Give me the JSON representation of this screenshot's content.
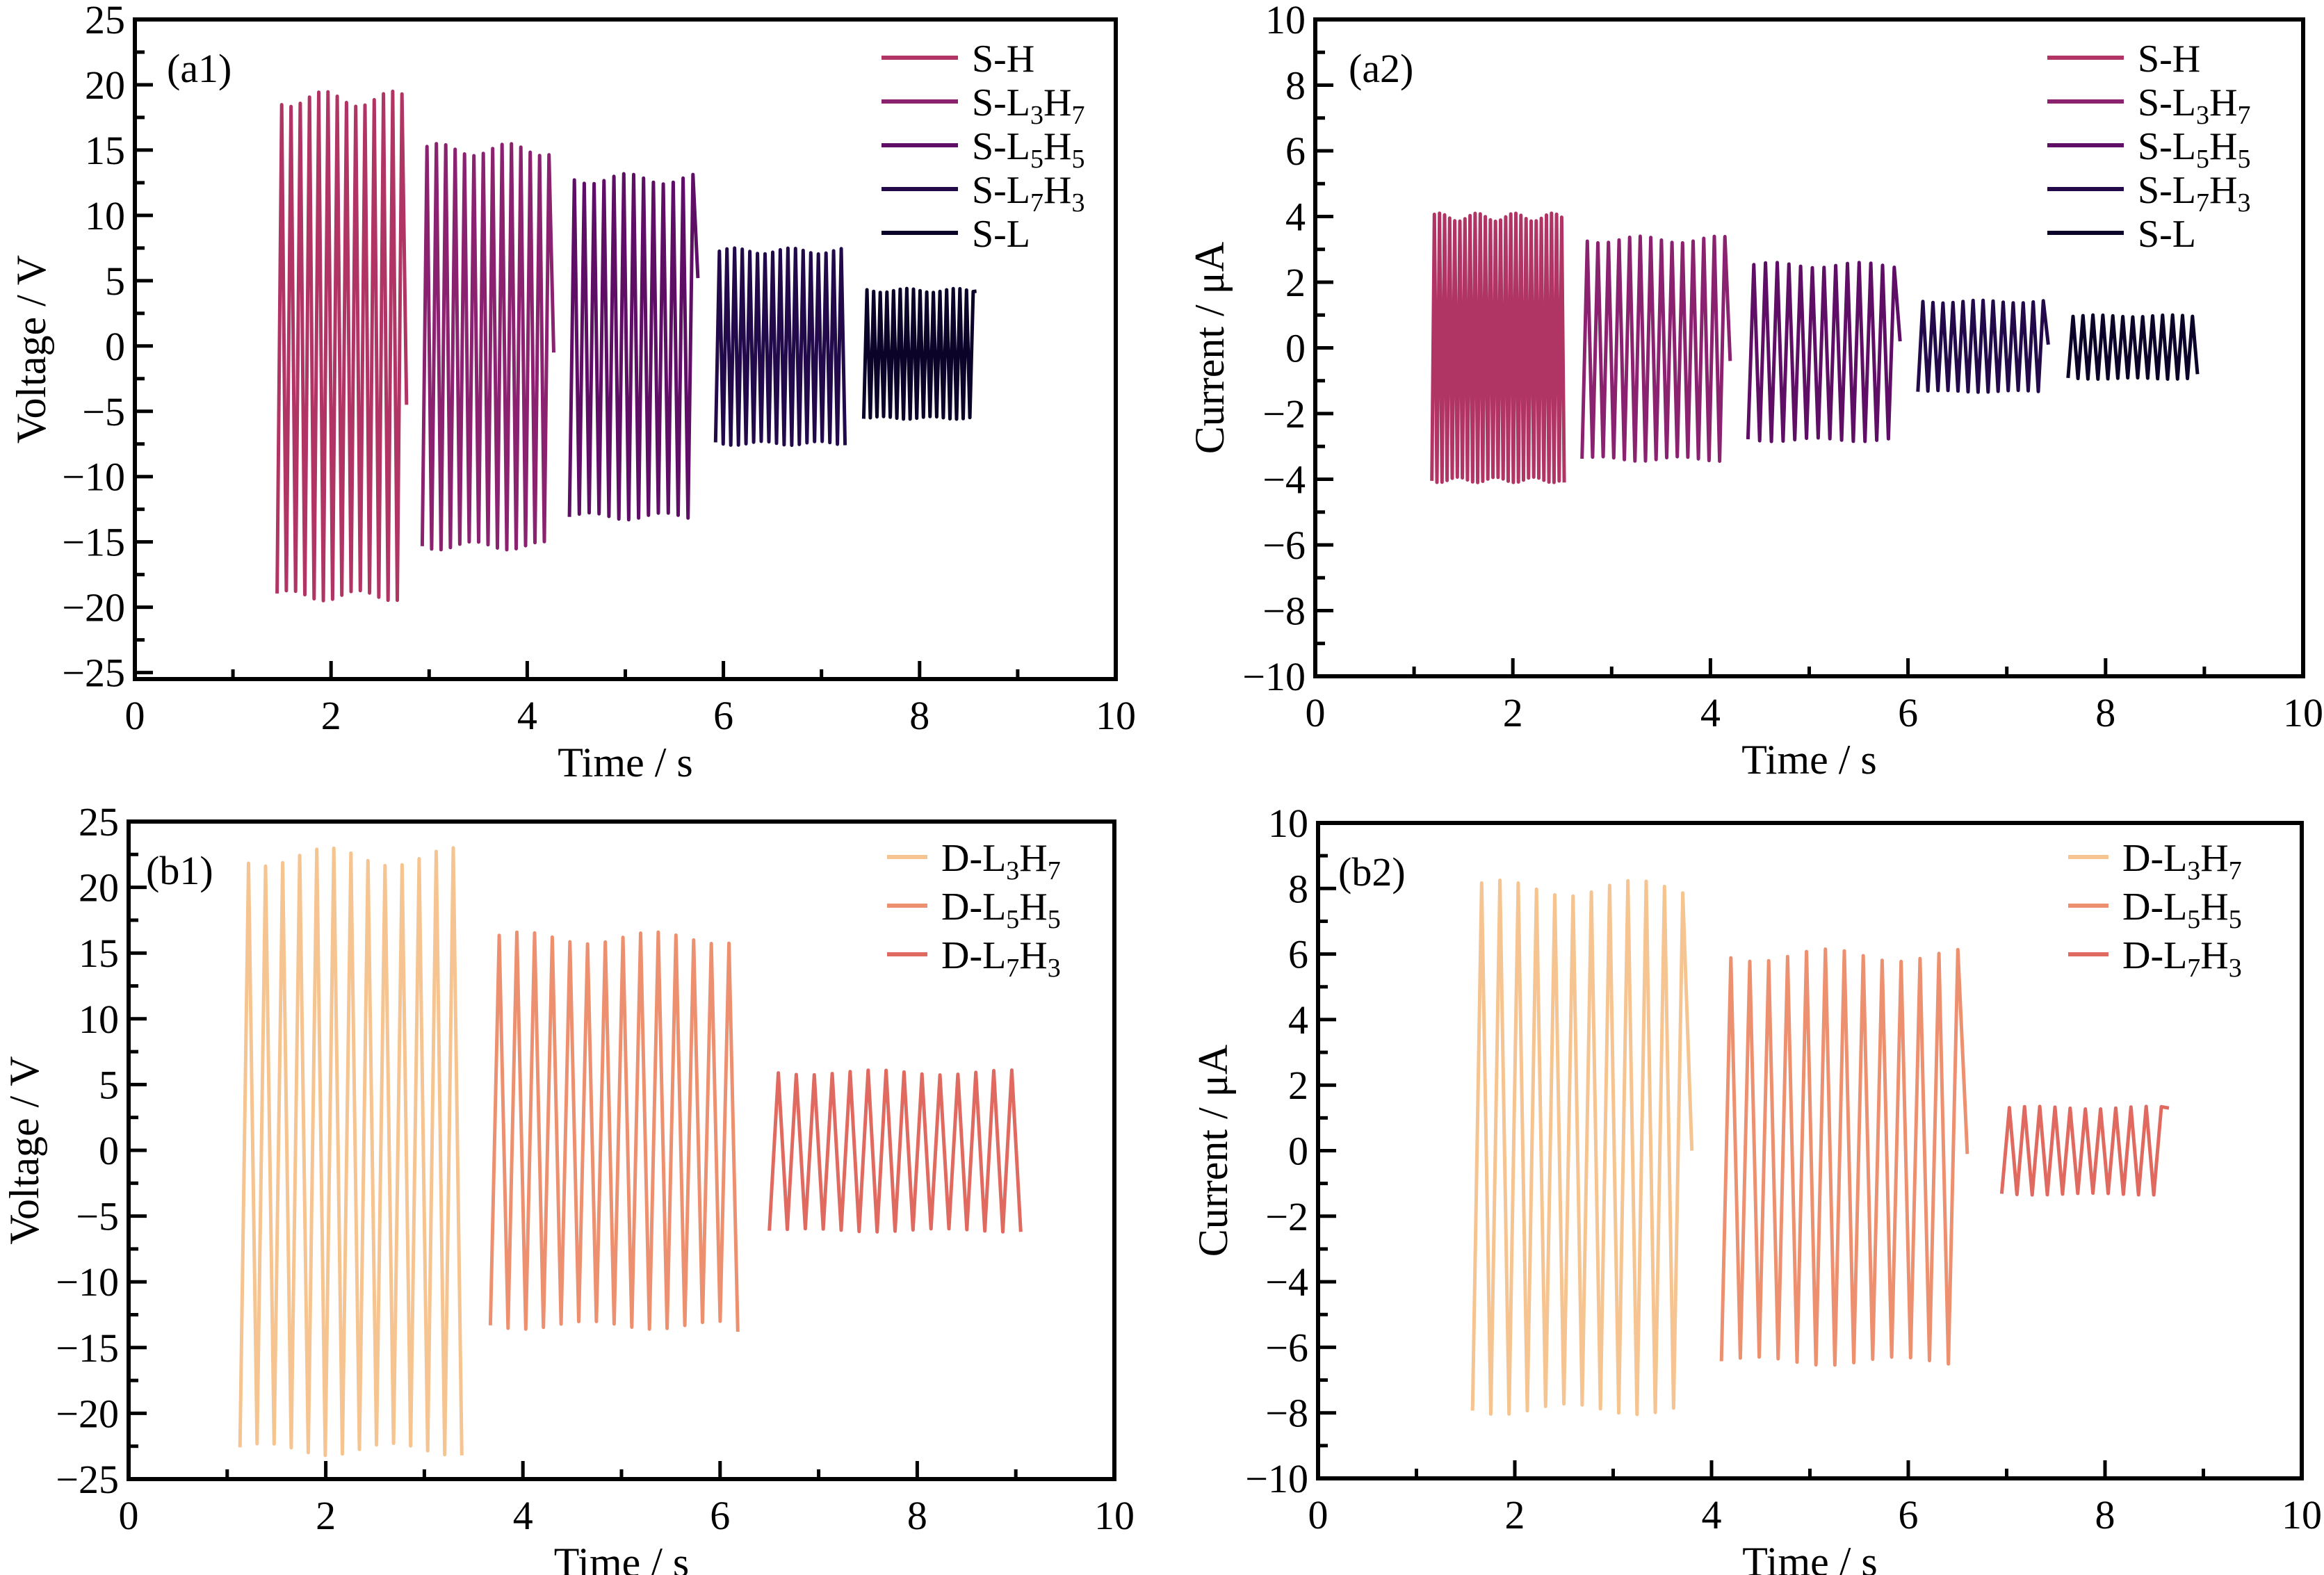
{
  "chart_data": [
    {
      "id": "a1",
      "type": "line",
      "panel_tag": "(a1)",
      "xlabel": "Time / s",
      "ylabel": "Voltage / V",
      "xlim": [
        0,
        10
      ],
      "ylim": [
        -25.5,
        25
      ],
      "xticks": [
        0,
        2,
        4,
        6,
        8,
        10
      ],
      "xminor": [
        1,
        3,
        5,
        7,
        9
      ],
      "yticks": [
        25,
        20,
        15,
        10,
        5,
        0,
        -5,
        -10,
        -15,
        -20,
        -25
      ],
      "ytick_labels": [
        "25",
        "20",
        "15",
        "10",
        "5",
        "0",
        "−15",
        "−20",
        "−25"
      ],
      "legend_position": "top-right",
      "grid": false,
      "series": [
        {
          "name": "S-H",
          "label_main": "S-H",
          "sub1": "",
          "label_mid": "",
          "sub2": "",
          "color": "#b03464",
          "t_start": 1.45,
          "t_end": 2.77,
          "cycles": 14,
          "high": 19.5,
          "low": -19.5,
          "end_value": -4.5
        },
        {
          "name": "S-L3H7",
          "label_main": "S-L",
          "sub1": "3",
          "label_mid": "H",
          "sub2": "7",
          "color": "#8a2270",
          "t_start": 2.93,
          "t_end": 4.27,
          "cycles": 14,
          "high": 15.5,
          "low": -15.6,
          "end_value": -0.5
        },
        {
          "name": "S-L5H5",
          "label_main": "S-L",
          "sub1": "5",
          "label_mid": "H",
          "sub2": "5",
          "color": "#5e0e64",
          "t_start": 4.43,
          "t_end": 5.74,
          "cycles": 13,
          "high": 13.2,
          "low": -13.3,
          "end_value": 5.2
        },
        {
          "name": "S-L7H3",
          "label_main": "S-L",
          "sub1": "7",
          "label_mid": "H",
          "sub2": "3",
          "color": "#220a4a",
          "t_start": 5.92,
          "t_end": 7.24,
          "cycles": 17,
          "high": 7.5,
          "low": -7.6,
          "end_value": -7.6
        },
        {
          "name": "S-L",
          "label_main": "S-L",
          "sub1": "",
          "label_mid": "",
          "sub2": "",
          "color": "#0c0428",
          "t_start": 7.43,
          "t_end": 8.58,
          "cycles": 17,
          "high": 4.4,
          "low": -5.6,
          "end_value": 4.2
        }
      ]
    },
    {
      "id": "a2",
      "type": "line",
      "panel_tag": "(a2)",
      "xlabel": "Time / s",
      "ylabel": "Current / μA",
      "xlim": [
        0,
        10
      ],
      "ylim": [
        -10,
        10
      ],
      "xticks": [
        0,
        2,
        4,
        6,
        8,
        10
      ],
      "xminor": [
        1,
        3,
        5,
        7,
        9
      ],
      "yticks": [
        10,
        8,
        6,
        4,
        2,
        0,
        -2,
        -4,
        -6,
        -8,
        -10
      ],
      "legend_position": "top-right",
      "grid": false,
      "series": [
        {
          "name": "S-H",
          "label_main": "S-H",
          "sub1": "",
          "label_mid": "",
          "sub2": "",
          "color": "#b03464",
          "t_start": 1.18,
          "t_end": 2.52,
          "cycles": 26,
          "high": 4.1,
          "low": -4.1,
          "end_value": -4.1
        },
        {
          "name": "S-L3H7",
          "label_main": "S-L",
          "sub1": "3",
          "label_mid": "H",
          "sub2": "7",
          "color": "#8a2270",
          "t_start": 2.7,
          "t_end": 4.2,
          "cycles": 14,
          "high": 3.4,
          "low": -3.45,
          "end_value": -0.4
        },
        {
          "name": "S-L5H5",
          "label_main": "S-L",
          "sub1": "5",
          "label_mid": "H",
          "sub2": "5",
          "color": "#5e0e64",
          "t_start": 4.38,
          "t_end": 5.92,
          "cycles": 13,
          "high": 2.6,
          "low": -2.85,
          "end_value": 0.2
        },
        {
          "name": "S-L7H3",
          "label_main": "S-L",
          "sub1": "7",
          "label_mid": "H",
          "sub2": "3",
          "color": "#220a4a",
          "t_start": 6.1,
          "t_end": 7.42,
          "cycles": 13,
          "high": 1.45,
          "low": -1.35,
          "end_value": 0.1
        },
        {
          "name": "S-L",
          "label_main": "S-L",
          "sub1": "",
          "label_mid": "",
          "sub2": "",
          "color": "#0c0428",
          "t_start": 7.62,
          "t_end": 8.93,
          "cycles": 13,
          "high": 1.0,
          "low": -0.95,
          "end_value": -0.8
        }
      ]
    },
    {
      "id": "b1",
      "type": "line",
      "panel_tag": "(b1)",
      "xlabel": "Time / s",
      "ylabel": "Voltage / V",
      "xlim": [
        0,
        10
      ],
      "ylim": [
        -25,
        25
      ],
      "xticks": [
        0,
        2,
        4,
        6,
        8,
        10
      ],
      "xminor": [
        1,
        3,
        5,
        7,
        9
      ],
      "yticks": [
        25,
        20,
        15,
        10,
        5,
        0,
        -5,
        -10,
        -15,
        -20,
        -25
      ],
      "legend_position": "top-right",
      "grid": false,
      "series": [
        {
          "name": "D-L3H7",
          "label_main": "D-L",
          "sub1": "3",
          "label_mid": "H",
          "sub2": "7",
          "color": "#f5c490",
          "t_start": 1.13,
          "t_end": 3.38,
          "cycles": 13,
          "high": 23.0,
          "low": -23.2,
          "end_value": -23.2
        },
        {
          "name": "D-L5H5",
          "label_main": "D-L",
          "sub1": "5",
          "label_mid": "H",
          "sub2": "5",
          "color": "#ec9070",
          "t_start": 3.67,
          "t_end": 6.18,
          "cycles": 14,
          "high": 16.6,
          "low": -13.6,
          "end_value": -13.8
        },
        {
          "name": "D-L7H3",
          "label_main": "D-L",
          "sub1": "7",
          "label_mid": "H",
          "sub2": "3",
          "color": "#e06a60",
          "t_start": 6.5,
          "t_end": 9.05,
          "cycles": 14,
          "high": 6.1,
          "low": -6.2,
          "end_value": -6.2
        }
      ]
    },
    {
      "id": "b2",
      "type": "line",
      "panel_tag": "(b2)",
      "xlabel": "Time / s",
      "ylabel": "Current / μA",
      "xlim": [
        0,
        10
      ],
      "ylim": [
        -10,
        10
      ],
      "xticks": [
        0,
        2,
        4,
        6,
        8,
        10
      ],
      "xminor": [
        1,
        3,
        5,
        7,
        9
      ],
      "yticks": [
        10,
        8,
        6,
        4,
        2,
        0,
        -2,
        -4,
        -6,
        -8,
        -10
      ],
      "legend_position": "top-right",
      "grid": false,
      "series": [
        {
          "name": "D-L3H7",
          "label_main": "D-L",
          "sub1": "3",
          "label_mid": "H",
          "sub2": "7",
          "color": "#f5c490",
          "t_start": 1.57,
          "t_end": 3.8,
          "cycles": 12,
          "high": 8.25,
          "low": -8.05,
          "end_value": 0.0
        },
        {
          "name": "D-L5H5",
          "label_main": "D-L",
          "sub1": "5",
          "label_mid": "H",
          "sub2": "5",
          "color": "#ec9070",
          "t_start": 4.1,
          "t_end": 6.6,
          "cycles": 13,
          "high": 6.15,
          "low": -6.55,
          "end_value": -0.1
        },
        {
          "name": "D-L7H3",
          "label_main": "D-L",
          "sub1": "7",
          "label_mid": "H",
          "sub2": "3",
          "color": "#e06a60",
          "t_start": 6.95,
          "t_end": 8.65,
          "cycles": 11,
          "high": 1.35,
          "low": -1.35,
          "end_value": 1.3
        }
      ]
    }
  ]
}
